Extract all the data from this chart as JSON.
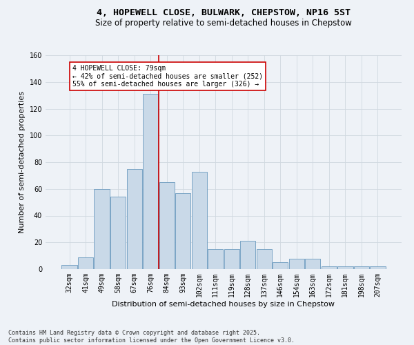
{
  "title": "4, HOPEWELL CLOSE, BULWARK, CHEPSTOW, NP16 5ST",
  "subtitle": "Size of property relative to semi-detached houses in Chepstow",
  "xlabel": "Distribution of semi-detached houses by size in Chepstow",
  "ylabel": "Number of semi-detached properties",
  "categories": [
    "32sqm",
    "41sqm",
    "49sqm",
    "58sqm",
    "67sqm",
    "76sqm",
    "84sqm",
    "93sqm",
    "102sqm",
    "111sqm",
    "119sqm",
    "128sqm",
    "137sqm",
    "146sqm",
    "154sqm",
    "163sqm",
    "172sqm",
    "181sqm",
    "198sqm",
    "207sqm"
  ],
  "values": [
    3,
    9,
    60,
    54,
    75,
    131,
    65,
    57,
    73,
    15,
    15,
    21,
    15,
    5,
    8,
    8,
    2,
    2,
    2,
    2
  ],
  "bar_color": "#c9d9e8",
  "bar_edge_color": "#6b9abe",
  "vline_index": 5.5,
  "annotation_text": "4 HOPEWELL CLOSE: 79sqm\n← 42% of semi-detached houses are smaller (252)\n55% of semi-detached houses are larger (326) →",
  "annotation_box_color": "#ffffff",
  "annotation_border_color": "#cc0000",
  "vline_color": "#cc0000",
  "grid_color": "#d0d8e0",
  "background_color": "#eef2f7",
  "footer_text": "Contains HM Land Registry data © Crown copyright and database right 2025.\nContains public sector information licensed under the Open Government Licence v3.0.",
  "ylim": [
    0,
    160
  ],
  "yticks": [
    0,
    20,
    40,
    60,
    80,
    100,
    120,
    140,
    160
  ],
  "title_fontsize": 9.5,
  "subtitle_fontsize": 8.5,
  "axis_label_fontsize": 8,
  "tick_fontsize": 7,
  "annotation_fontsize": 7,
  "footer_fontsize": 6
}
